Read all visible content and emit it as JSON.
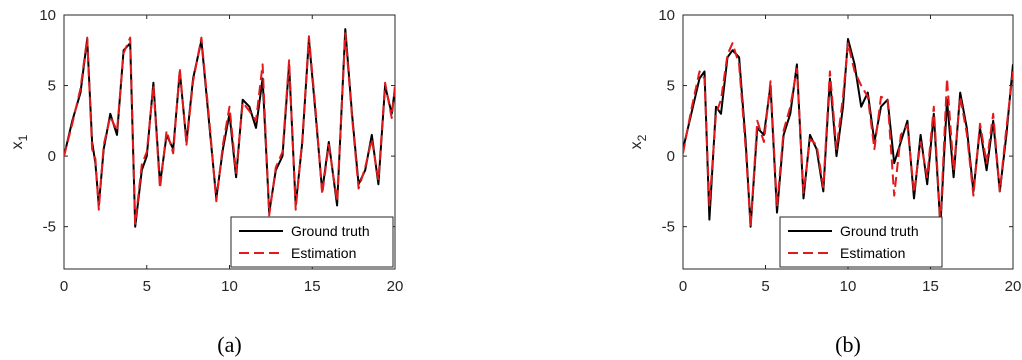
{
  "chart_data": [
    {
      "type": "line",
      "caption": "(a)",
      "xlabel": "",
      "ylabel": "x",
      "ylabel_sub": "1",
      "xlim": [
        0,
        20
      ],
      "ylim": [
        -8,
        10
      ],
      "xticks": [
        0,
        5,
        10,
        15,
        20
      ],
      "yticks": [
        -5,
        0,
        5,
        10
      ],
      "legend": {
        "placement": "bottom-right"
      },
      "x": [
        0,
        0.5,
        1.0,
        1.4,
        1.7,
        1.9,
        2.1,
        2.4,
        2.8,
        3.2,
        3.6,
        4.0,
        4.3,
        4.7,
        5.0,
        5.4,
        5.8,
        6.2,
        6.6,
        7.0,
        7.4,
        7.8,
        8.3,
        8.8,
        9.2,
        9.6,
        10.0,
        10.4,
        10.8,
        11.2,
        11.6,
        12.0,
        12.4,
        12.8,
        13.2,
        13.6,
        14.0,
        14.4,
        14.8,
        15.2,
        15.6,
        16.0,
        16.5,
        17.0,
        17.4,
        17.8,
        18.2,
        18.6,
        19.0,
        19.4,
        19.8,
        20.0
      ],
      "series": [
        {
          "name": "Ground truth",
          "color": "#000000",
          "dash": "solid",
          "values": [
            0,
            2.5,
            4.5,
            8.3,
            1.0,
            -0.5,
            -3.5,
            0.5,
            3.0,
            1.5,
            7.5,
            8.0,
            -5.0,
            -1.0,
            0.0,
            5.2,
            -2.0,
            1.5,
            0.5,
            6.0,
            1.0,
            5.5,
            8.2,
            2.0,
            -3.0,
            0.5,
            3.0,
            -1.5,
            4.0,
            3.5,
            2.0,
            5.5,
            -4.0,
            -1.0,
            0.0,
            6.5,
            -3.5,
            1.0,
            8.3,
            3.0,
            -2.5,
            1.0,
            -3.5,
            9.0,
            3.0,
            -2.0,
            -1.0,
            1.5,
            -2.0,
            5.0,
            3.0,
            4.8
          ]
        },
        {
          "name": "Estimation",
          "color": "#e31a1c",
          "dash": "dashed",
          "values": [
            0,
            2.3,
            4.8,
            8.4,
            0.5,
            -0.2,
            -3.8,
            0.8,
            2.8,
            1.8,
            7.3,
            8.4,
            -4.8,
            -0.6,
            0.3,
            5.0,
            -2.3,
            1.8,
            0.2,
            6.2,
            0.8,
            5.3,
            8.4,
            2.3,
            -3.2,
            0.8,
            3.5,
            -1.2,
            3.8,
            3.2,
            2.5,
            6.5,
            -4.2,
            -0.8,
            0.3,
            6.8,
            -3.8,
            1.2,
            8.5,
            3.3,
            -2.7,
            0.8,
            -3.2,
            8.7,
            2.8,
            -2.3,
            -0.8,
            1.2,
            -1.7,
            5.2,
            2.7,
            5.0
          ]
        }
      ]
    },
    {
      "type": "line",
      "caption": "(b)",
      "xlabel": "",
      "ylabel": "x",
      "ylabel_sub": "2",
      "xlim": [
        0,
        20
      ],
      "ylim": [
        -8,
        10
      ],
      "xticks": [
        0,
        5,
        10,
        15,
        20
      ],
      "yticks": [
        -5,
        0,
        5,
        10
      ],
      "legend": {
        "placement": "bottom-left"
      },
      "x": [
        0,
        0.5,
        1.0,
        1.3,
        1.6,
        2.0,
        2.3,
        2.7,
        3.0,
        3.4,
        3.8,
        4.1,
        4.5,
        4.9,
        5.3,
        5.7,
        6.1,
        6.5,
        6.9,
        7.3,
        7.7,
        8.1,
        8.5,
        8.9,
        9.3,
        9.7,
        10.0,
        10.4,
        10.8,
        11.2,
        11.6,
        12.0,
        12.4,
        12.8,
        13.2,
        13.6,
        14.0,
        14.4,
        14.8,
        15.2,
        15.6,
        16.0,
        16.4,
        16.8,
        17.2,
        17.6,
        18.0,
        18.4,
        18.8,
        19.2,
        19.6,
        20.0
      ],
      "series": [
        {
          "name": "Ground truth",
          "color": "#000000",
          "dash": "solid",
          "values": [
            0.5,
            3.0,
            5.5,
            6.0,
            -4.5,
            3.5,
            3.0,
            7.0,
            7.5,
            7.0,
            1.0,
            -5.0,
            2.0,
            1.5,
            5.0,
            -4.0,
            1.5,
            3.0,
            6.5,
            -3.0,
            1.5,
            0.5,
            -2.5,
            5.5,
            0.0,
            3.5,
            8.3,
            6.5,
            3.5,
            4.5,
            1.0,
            3.5,
            4.0,
            -0.5,
            1.0,
            2.5,
            -3.0,
            1.5,
            -2.0,
            3.0,
            -5.0,
            4.0,
            -1.5,
            4.5,
            2.0,
            -2.5,
            2.0,
            -1.0,
            2.5,
            -2.5,
            1.5,
            6.5
          ]
        },
        {
          "name": "Estimation",
          "color": "#e31a1c",
          "dash": "dashed",
          "values": [
            0.2,
            3.3,
            6.0,
            5.5,
            -3.5,
            3.0,
            4.0,
            7.2,
            8.0,
            6.5,
            0.5,
            -5.0,
            2.5,
            1.0,
            5.3,
            -3.6,
            1.8,
            3.5,
            6.2,
            -2.6,
            1.2,
            0.8,
            -2.2,
            6.0,
            0.5,
            4.2,
            8.0,
            6.0,
            5.0,
            4.2,
            0.5,
            4.2,
            4.0,
            -2.8,
            1.5,
            2.2,
            -2.6,
            1.0,
            -1.5,
            3.5,
            -4.8,
            5.5,
            -1.0,
            4.2,
            1.6,
            -2.8,
            2.3,
            -0.5,
            3.0,
            -2.5,
            2.0,
            6.0
          ]
        }
      ]
    }
  ]
}
